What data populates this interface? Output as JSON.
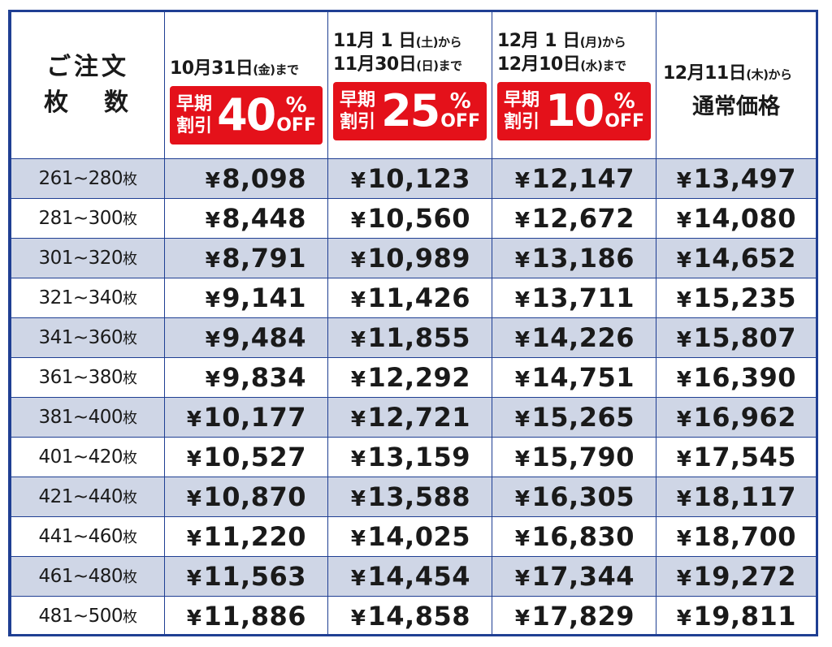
{
  "header": {
    "qty_line1": "ご注文",
    "qty_line2a": "枚",
    "qty_line2b": "数",
    "periods": [
      {
        "line1_main": "10月31日",
        "line1_small": "(金)まで",
        "line2_main": "",
        "line2_small": "",
        "badge_label1": "早期",
        "badge_label2": "割引",
        "badge_pct": "40",
        "badge_sign": "%",
        "badge_off": "OFF"
      },
      {
        "line1_main": "11月 1 日",
        "line1_small": "(土)から",
        "line2_main": "11月30日",
        "line2_small": "(日)まで",
        "badge_label1": "早期",
        "badge_label2": "割引",
        "badge_pct": "25",
        "badge_sign": "%",
        "badge_off": "OFF"
      },
      {
        "line1_main": "12月 1 日",
        "line1_small": "(月)から",
        "line2_main": "12月10日",
        "line2_small": "(水)まで",
        "badge_label1": "早期",
        "badge_label2": "割引",
        "badge_pct": "10",
        "badge_sign": "%",
        "badge_off": "OFF"
      }
    ],
    "regular": {
      "line1_main": "12月11日",
      "line1_small": "(木)から",
      "title": "通常価格"
    }
  },
  "unit": "枚",
  "yen": "¥",
  "rows": [
    {
      "qty": "261~280",
      "p40": "8,098",
      "p25": "10,123",
      "p10": "12,147",
      "reg": "13,497"
    },
    {
      "qty": "281~300",
      "p40": "8,448",
      "p25": "10,560",
      "p10": "12,672",
      "reg": "14,080"
    },
    {
      "qty": "301~320",
      "p40": "8,791",
      "p25": "10,989",
      "p10": "13,186",
      "reg": "14,652"
    },
    {
      "qty": "321~340",
      "p40": "9,141",
      "p25": "11,426",
      "p10": "13,711",
      "reg": "15,235"
    },
    {
      "qty": "341~360",
      "p40": "9,484",
      "p25": "11,855",
      "p10": "14,226",
      "reg": "15,807"
    },
    {
      "qty": "361~380",
      "p40": "9,834",
      "p25": "12,292",
      "p10": "14,751",
      "reg": "16,390"
    },
    {
      "qty": "381~400",
      "p40": "10,177",
      "p25": "12,721",
      "p10": "15,265",
      "reg": "16,962"
    },
    {
      "qty": "401~420",
      "p40": "10,527",
      "p25": "13,159",
      "p10": "15,790",
      "reg": "17,545"
    },
    {
      "qty": "421~440",
      "p40": "10,870",
      "p25": "13,588",
      "p10": "16,305",
      "reg": "18,117"
    },
    {
      "qty": "441~460",
      "p40": "11,220",
      "p25": "14,025",
      "p10": "16,830",
      "reg": "18,700"
    },
    {
      "qty": "461~480",
      "p40": "11,563",
      "p25": "14,454",
      "p10": "17,344",
      "reg": "19,272"
    },
    {
      "qty": "481~500",
      "p40": "11,886",
      "p25": "14,858",
      "p10": "17,829",
      "reg": "19,811"
    }
  ],
  "colors": {
    "border": "#1f3f93",
    "band": "#cfd6e6",
    "badge": "#e4111a"
  }
}
